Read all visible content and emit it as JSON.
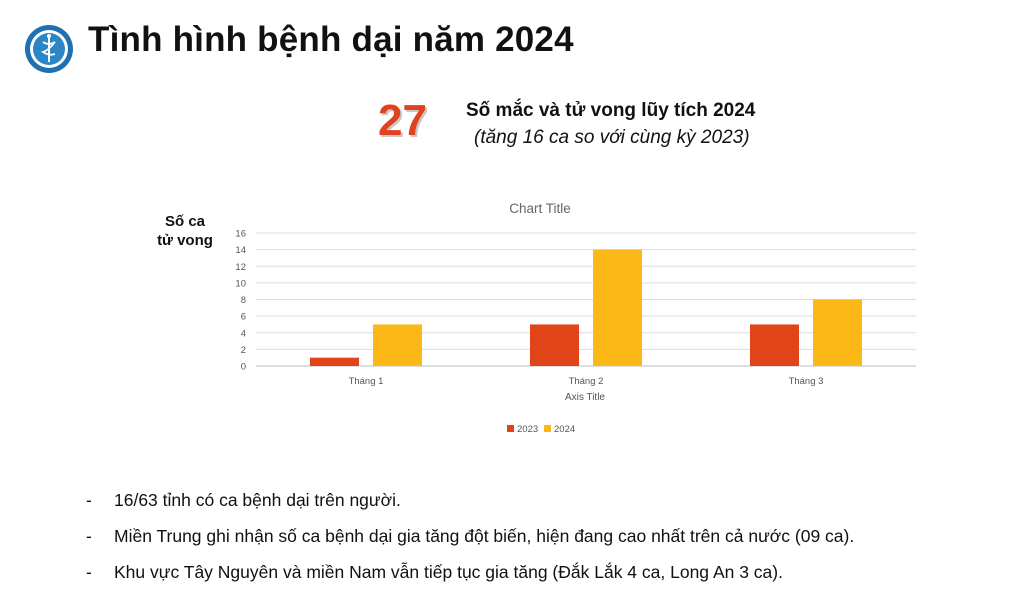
{
  "header": {
    "title": "Tình hình bệnh dại năm 2024"
  },
  "summary": {
    "big_number": "27",
    "headline": "Số mắc và tử vong lũy tích 2024",
    "subheadline": "(tăng 16 ca so với cùng kỳ 2023)"
  },
  "y_side_label": [
    "Số ca",
    "tử vong"
  ],
  "chart_data": {
    "type": "bar",
    "title": "Chart Title",
    "xlabel": "Axis Title",
    "ylabel": "",
    "categories": [
      "Tháng 1",
      "Tháng 2",
      "Tháng 3"
    ],
    "series": [
      {
        "name": "2023",
        "values": [
          1,
          5,
          5
        ],
        "color": "#e2441a"
      },
      {
        "name": "2024",
        "values": [
          5,
          14,
          8
        ],
        "color": "#fbb817"
      }
    ],
    "ylim": [
      0,
      16
    ],
    "yticks": [
      0,
      2,
      4,
      6,
      8,
      10,
      12,
      14,
      16
    ],
    "grid": true,
    "legend": "bottom"
  },
  "bullets": [
    "16/63 tỉnh có ca bệnh dại trên người.",
    "Miền Trung ghi nhận số ca bệnh dại gia tăng đột biến, hiện đang cao nhất trên cả nước (09 ca).",
    "Khu vực Tây Nguyên và miền Nam vẫn tiếp tục gia tăng (Đắk Lắk 4 ca, Long An 3 ca)."
  ],
  "bullet_marker": "-",
  "colors": {
    "accent_number": "#e0421f",
    "logo_blue": "#1f6fb3"
  }
}
